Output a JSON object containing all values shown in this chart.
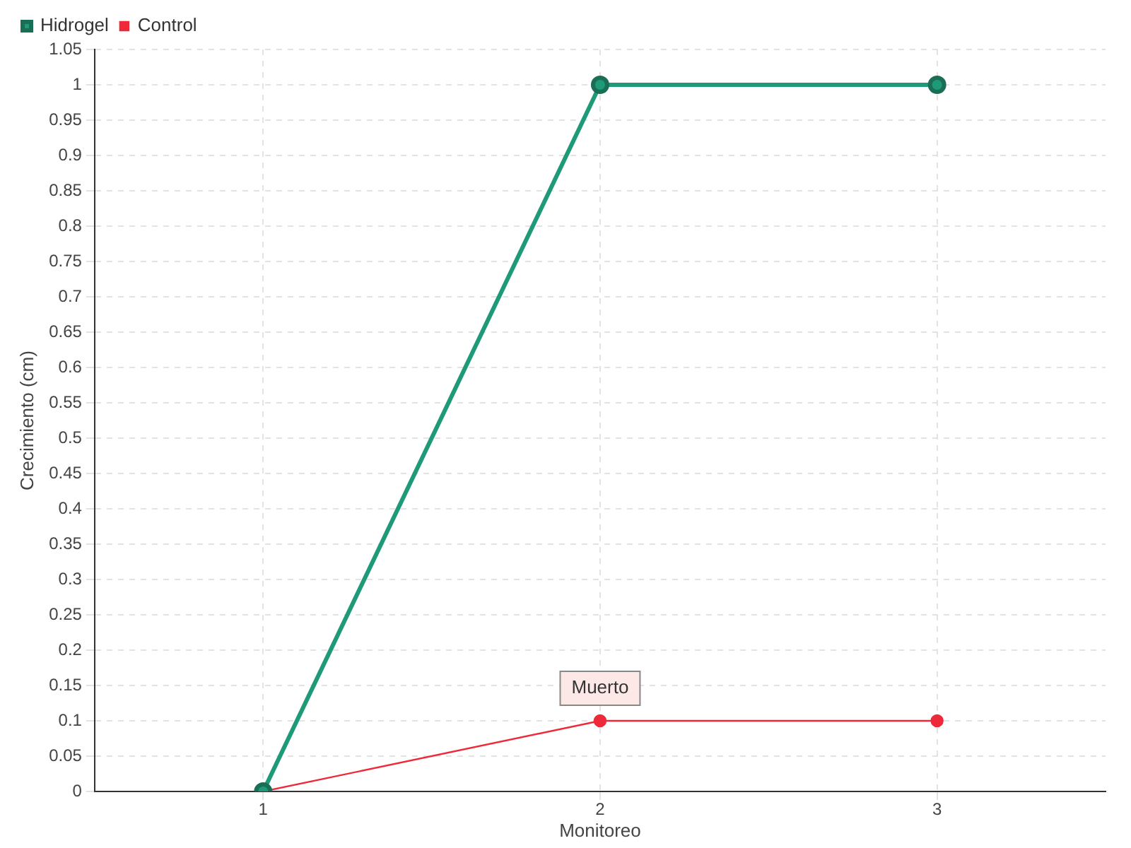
{
  "chart_data": {
    "type": "line",
    "xlabel": "Monitoreo",
    "ylabel": "Crecimiento (cm)",
    "categories": [
      "1",
      "2",
      "3"
    ],
    "series": [
      {
        "name": "Hidrogel",
        "color": "#1f9a78",
        "values": [
          0,
          1,
          1
        ]
      },
      {
        "name": "Control",
        "color": "#ee2a3a",
        "values": [
          0,
          0.1,
          0.1
        ]
      }
    ],
    "ylim": [
      0,
      1.05
    ],
    "yticks": [
      0,
      0.05,
      0.1,
      0.15,
      0.2,
      0.25,
      0.3,
      0.35,
      0.4,
      0.45,
      0.5,
      0.55,
      0.6,
      0.65,
      0.7,
      0.75,
      0.8,
      0.85,
      0.9,
      0.95,
      1,
      1.05
    ],
    "annotations": [
      {
        "text": "Muerto",
        "x": "2",
        "y": 0.1
      }
    ],
    "grid": true,
    "legend": "top left",
    "marker": "circle",
    "line_style": "solid"
  }
}
